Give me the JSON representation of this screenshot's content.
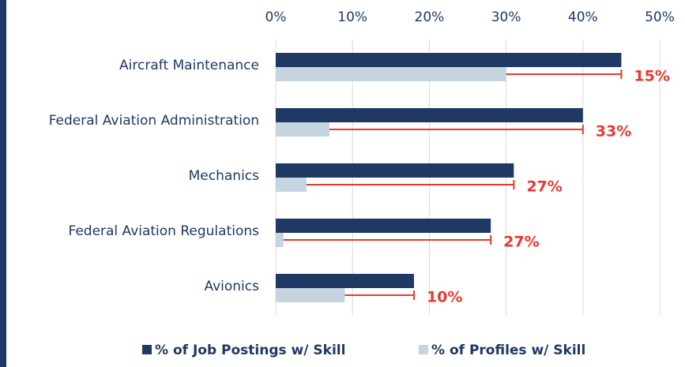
{
  "chart_data": {
    "type": "bar",
    "orientation": "horizontal",
    "categories": [
      "Aircraft Maintenance",
      "Federal Aviation Administration",
      "Mechanics",
      "Federal Aviation Regulations",
      "Avionics"
    ],
    "series": [
      {
        "name": "% of Job Postings w/ Skill",
        "color": "#1f3864",
        "values": [
          45,
          40,
          31,
          28,
          18
        ]
      },
      {
        "name": "% of Profiles w/ Skill",
        "color": "#c5d5df",
        "values": [
          30,
          7,
          4,
          1,
          9
        ]
      }
    ],
    "gap_labels": [
      "15%",
      "33%",
      "27%",
      "27%",
      "10%"
    ],
    "gap_color": "#e8392f",
    "xlim": [
      0,
      50
    ],
    "xticks": [
      {
        "value": 0,
        "label": "0%"
      },
      {
        "value": 10,
        "label": "10%"
      },
      {
        "value": 20,
        "label": "20%"
      },
      {
        "value": 30,
        "label": "30%"
      },
      {
        "value": 40,
        "label": "40%"
      },
      {
        "value": 50,
        "label": "50%"
      }
    ],
    "grid": true
  }
}
